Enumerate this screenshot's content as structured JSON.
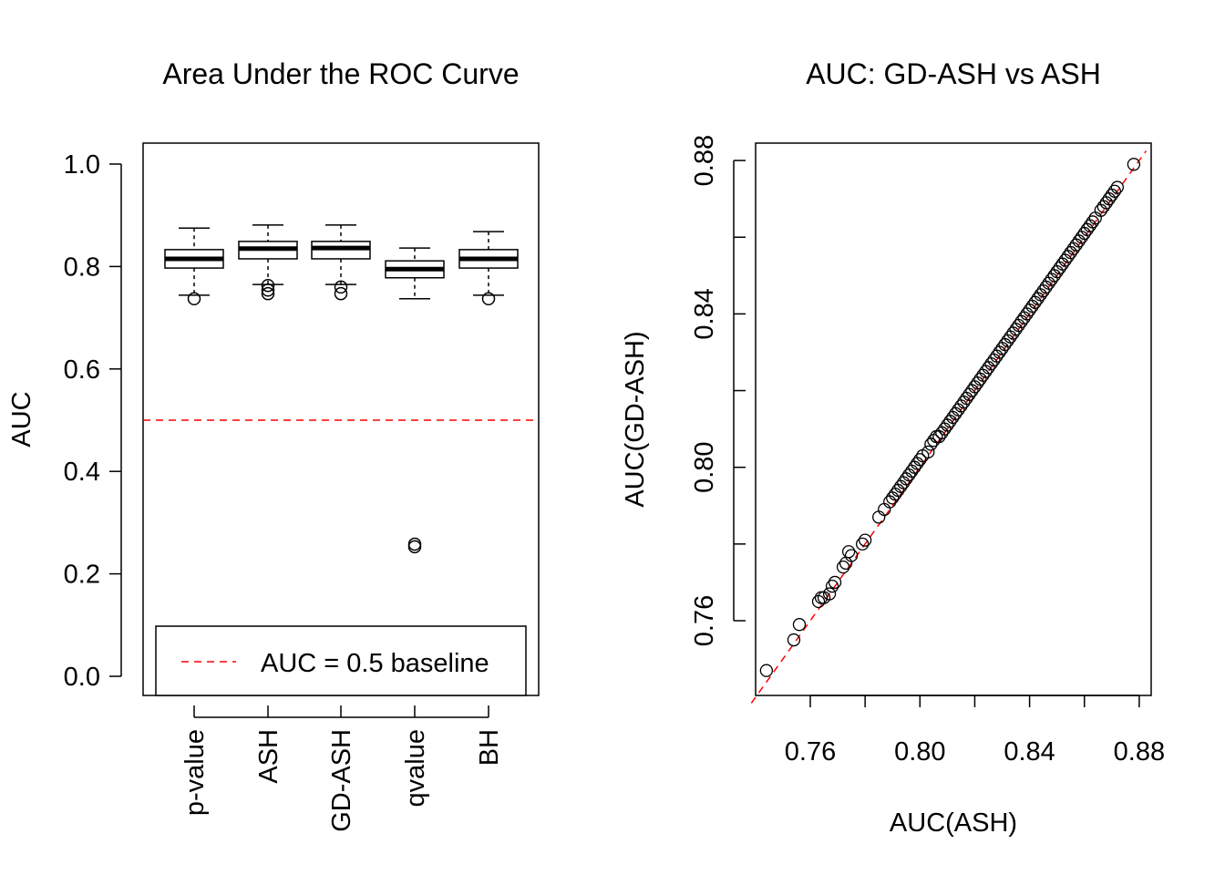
{
  "chart_data": [
    {
      "type": "box",
      "title": "Area Under the ROC Curve",
      "xlabel": "",
      "ylabel": "AUC",
      "ylim": [
        0,
        1
      ],
      "yticks": [
        "0.0",
        "0.2",
        "0.4",
        "0.6",
        "0.8",
        "1.0"
      ],
      "ytick_values": [
        0,
        0.2,
        0.4,
        0.6,
        0.8,
        1.0
      ],
      "categories": [
        "p-value",
        "ASH",
        "GD-ASH",
        "qvalue",
        "BH"
      ],
      "boxes": [
        {
          "whisker_low": 0.744,
          "q1": 0.797,
          "median": 0.815,
          "q3": 0.833,
          "whisker_high": 0.875,
          "outliers": [
            0.737
          ]
        },
        {
          "whisker_low": 0.765,
          "q1": 0.815,
          "median": 0.835,
          "q3": 0.849,
          "whisker_high": 0.881,
          "outliers": [
            0.763,
            0.754,
            0.747
          ]
        },
        {
          "whisker_low": 0.765,
          "q1": 0.815,
          "median": 0.836,
          "q3": 0.849,
          "whisker_high": 0.881,
          "outliers": [
            0.76,
            0.747
          ]
        },
        {
          "whisker_low": 0.737,
          "q1": 0.778,
          "median": 0.795,
          "q3": 0.811,
          "whisker_high": 0.836,
          "outliers": [
            0.258,
            0.253
          ]
        },
        {
          "whisker_low": 0.744,
          "q1": 0.797,
          "median": 0.815,
          "q3": 0.833,
          "whisker_high": 0.868,
          "outliers": [
            0.737
          ]
        }
      ],
      "reference_line": {
        "y": 0.5,
        "color": "#ff0000",
        "style": "dashed"
      },
      "legend": {
        "label": "AUC = 0.5 baseline",
        "placement": "bottom"
      }
    },
    {
      "type": "scatter",
      "title": "AUC: GD-ASH vs ASH",
      "xlabel": "AUC(ASH)",
      "ylabel": "AUC(GD-ASH)",
      "xlim": [
        0.74,
        0.88
      ],
      "ylim": [
        0.745,
        0.88
      ],
      "xticks": [
        "0.76",
        "0.80",
        "0.84",
        "0.88"
      ],
      "yticks": [
        "0.76",
        "0.80",
        "0.84",
        "0.88"
      ],
      "minor_ticks": [
        0.76,
        0.78,
        0.8,
        0.82,
        0.84,
        0.86,
        0.88
      ],
      "reference_line": {
        "type": "y=x",
        "color": "#ff0000",
        "style": "dashed"
      },
      "points": [
        [
          0.744,
          0.747
        ],
        [
          0.754,
          0.755
        ],
        [
          0.756,
          0.759
        ],
        [
          0.763,
          0.765
        ],
        [
          0.764,
          0.766
        ],
        [
          0.765,
          0.766
        ],
        [
          0.767,
          0.767
        ],
        [
          0.768,
          0.769
        ],
        [
          0.769,
          0.77
        ],
        [
          0.772,
          0.774
        ],
        [
          0.773,
          0.775
        ],
        [
          0.774,
          0.778
        ],
        [
          0.775,
          0.777
        ],
        [
          0.779,
          0.78
        ],
        [
          0.78,
          0.781
        ],
        [
          0.785,
          0.787
        ],
        [
          0.787,
          0.789
        ],
        [
          0.789,
          0.791
        ],
        [
          0.79,
          0.792
        ],
        [
          0.791,
          0.793
        ],
        [
          0.792,
          0.794
        ],
        [
          0.793,
          0.795
        ],
        [
          0.794,
          0.796
        ],
        [
          0.795,
          0.797
        ],
        [
          0.796,
          0.798
        ],
        [
          0.797,
          0.799
        ],
        [
          0.798,
          0.8
        ],
        [
          0.799,
          0.801
        ],
        [
          0.8,
          0.802
        ],
        [
          0.801,
          0.803
        ],
        [
          0.803,
          0.804
        ],
        [
          0.804,
          0.806
        ],
        [
          0.805,
          0.807
        ],
        [
          0.806,
          0.808
        ],
        [
          0.807,
          0.808
        ],
        [
          0.808,
          0.809
        ],
        [
          0.809,
          0.81
        ],
        [
          0.81,
          0.811
        ],
        [
          0.811,
          0.812
        ],
        [
          0.812,
          0.813
        ],
        [
          0.813,
          0.814
        ],
        [
          0.814,
          0.815
        ],
        [
          0.815,
          0.816
        ],
        [
          0.816,
          0.817
        ],
        [
          0.817,
          0.818
        ],
        [
          0.818,
          0.819
        ],
        [
          0.819,
          0.82
        ],
        [
          0.82,
          0.821
        ],
        [
          0.821,
          0.822
        ],
        [
          0.822,
          0.823
        ],
        [
          0.823,
          0.824
        ],
        [
          0.824,
          0.825
        ],
        [
          0.825,
          0.826
        ],
        [
          0.826,
          0.827
        ],
        [
          0.827,
          0.828
        ],
        [
          0.828,
          0.829
        ],
        [
          0.829,
          0.83
        ],
        [
          0.83,
          0.831
        ],
        [
          0.831,
          0.832
        ],
        [
          0.832,
          0.833
        ],
        [
          0.833,
          0.834
        ],
        [
          0.834,
          0.835
        ],
        [
          0.835,
          0.836
        ],
        [
          0.836,
          0.837
        ],
        [
          0.837,
          0.838
        ],
        [
          0.838,
          0.839
        ],
        [
          0.839,
          0.84
        ],
        [
          0.84,
          0.841
        ],
        [
          0.841,
          0.842
        ],
        [
          0.842,
          0.843
        ],
        [
          0.843,
          0.844
        ],
        [
          0.844,
          0.845
        ],
        [
          0.845,
          0.846
        ],
        [
          0.846,
          0.847
        ],
        [
          0.847,
          0.848
        ],
        [
          0.848,
          0.849
        ],
        [
          0.849,
          0.85
        ],
        [
          0.85,
          0.851
        ],
        [
          0.851,
          0.852
        ],
        [
          0.852,
          0.853
        ],
        [
          0.853,
          0.854
        ],
        [
          0.854,
          0.855
        ],
        [
          0.855,
          0.856
        ],
        [
          0.856,
          0.857
        ],
        [
          0.857,
          0.858
        ],
        [
          0.858,
          0.859
        ],
        [
          0.859,
          0.86
        ],
        [
          0.86,
          0.861
        ],
        [
          0.861,
          0.862
        ],
        [
          0.862,
          0.863
        ],
        [
          0.863,
          0.864
        ],
        [
          0.864,
          0.865
        ],
        [
          0.866,
          0.867
        ],
        [
          0.867,
          0.868
        ],
        [
          0.868,
          0.869
        ],
        [
          0.869,
          0.87
        ],
        [
          0.87,
          0.871
        ],
        [
          0.871,
          0.872
        ],
        [
          0.872,
          0.873
        ],
        [
          0.878,
          0.879
        ]
      ]
    }
  ]
}
